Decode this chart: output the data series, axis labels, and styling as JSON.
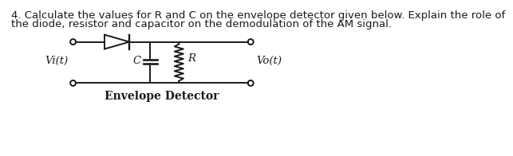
{
  "title_line1": "4. Calculate the values for R and C on the envelope detector given below. Explain the role of",
  "title_line2": "the diode, resistor and capacitor on the demodulation of the AM signal.",
  "label_vi": "Vi(t)",
  "label_vo": "Vo(t)",
  "label_c": "C",
  "label_r": "R",
  "label_bottom": "Envelope Detector",
  "bg_color": "#ffffff",
  "line_color": "#1a1a1a",
  "text_color": "#1a1a1a",
  "fontsize_title": 9.5,
  "fontsize_labels": 9.5
}
